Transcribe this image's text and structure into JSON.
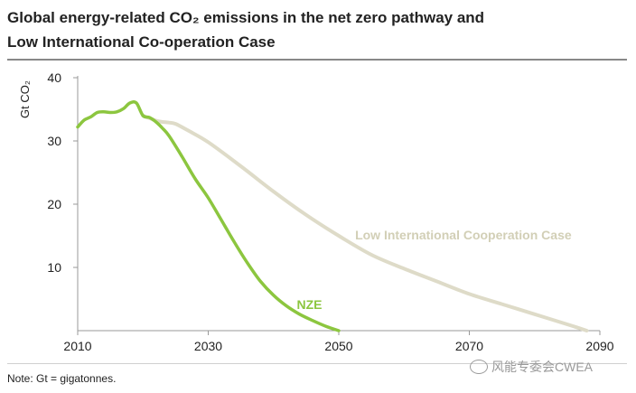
{
  "header": {
    "title_line1": "Global energy-related CO₂ emissions in the net zero pathway and",
    "title_line2": "Low International Co-operation Case"
  },
  "footer": {
    "note": "Note: Gt = gigatonnes.",
    "watermark": "风能专委会CWEA"
  },
  "colors": {
    "nze": "#8cc63f",
    "lic": "#dedbc8",
    "lic_label": "#d2cfb6",
    "axis": "#999999",
    "text": "#222222"
  },
  "chart_data": {
    "type": "line",
    "title": "Global energy-related CO₂ emissions in the net zero pathway and Low International Co-operation Case",
    "xlabel": "",
    "ylabel": "Gt CO₂",
    "xlim": [
      2010,
      2090
    ],
    "ylim": [
      0,
      40
    ],
    "x_ticks": [
      "2010",
      "2030",
      "2050",
      "2070",
      "2090"
    ],
    "y_ticks": [
      "10",
      "20",
      "30",
      "40"
    ],
    "grid": false,
    "series": [
      {
        "name": "NZE",
        "label": "NZE",
        "x": [
          2010,
          2011,
          2012,
          2013,
          2014,
          2015,
          2016,
          2017,
          2018,
          2019,
          2020,
          2021,
          2022,
          2023,
          2024,
          2026,
          2028,
          2030,
          2032,
          2034,
          2036,
          2038,
          2040,
          2042,
          2044,
          2046,
          2048,
          2050
        ],
        "values": [
          32.2,
          33.3,
          33.8,
          34.5,
          34.6,
          34.5,
          34.6,
          35.1,
          36.0,
          36.0,
          34.0,
          33.7,
          33.0,
          32.0,
          30.8,
          27.5,
          24.0,
          21.0,
          17.5,
          14.0,
          10.7,
          7.8,
          5.6,
          3.9,
          2.6,
          1.6,
          0.7,
          0.0
        ]
      },
      {
        "name": "Low International Cooperation Case",
        "label": "Low International Cooperation Case",
        "x": [
          2020,
          2021,
          2022,
          2023,
          2024,
          2025,
          2027,
          2030,
          2035,
          2040,
          2045,
          2050,
          2055,
          2060,
          2065,
          2070,
          2075,
          2080,
          2085,
          2088
        ],
        "values": [
          34.0,
          33.6,
          33.2,
          33.0,
          32.9,
          32.7,
          31.6,
          29.8,
          26.0,
          22.0,
          18.3,
          15.0,
          12.0,
          9.8,
          7.8,
          5.8,
          4.2,
          2.6,
          1.0,
          0.0
        ]
      }
    ]
  }
}
